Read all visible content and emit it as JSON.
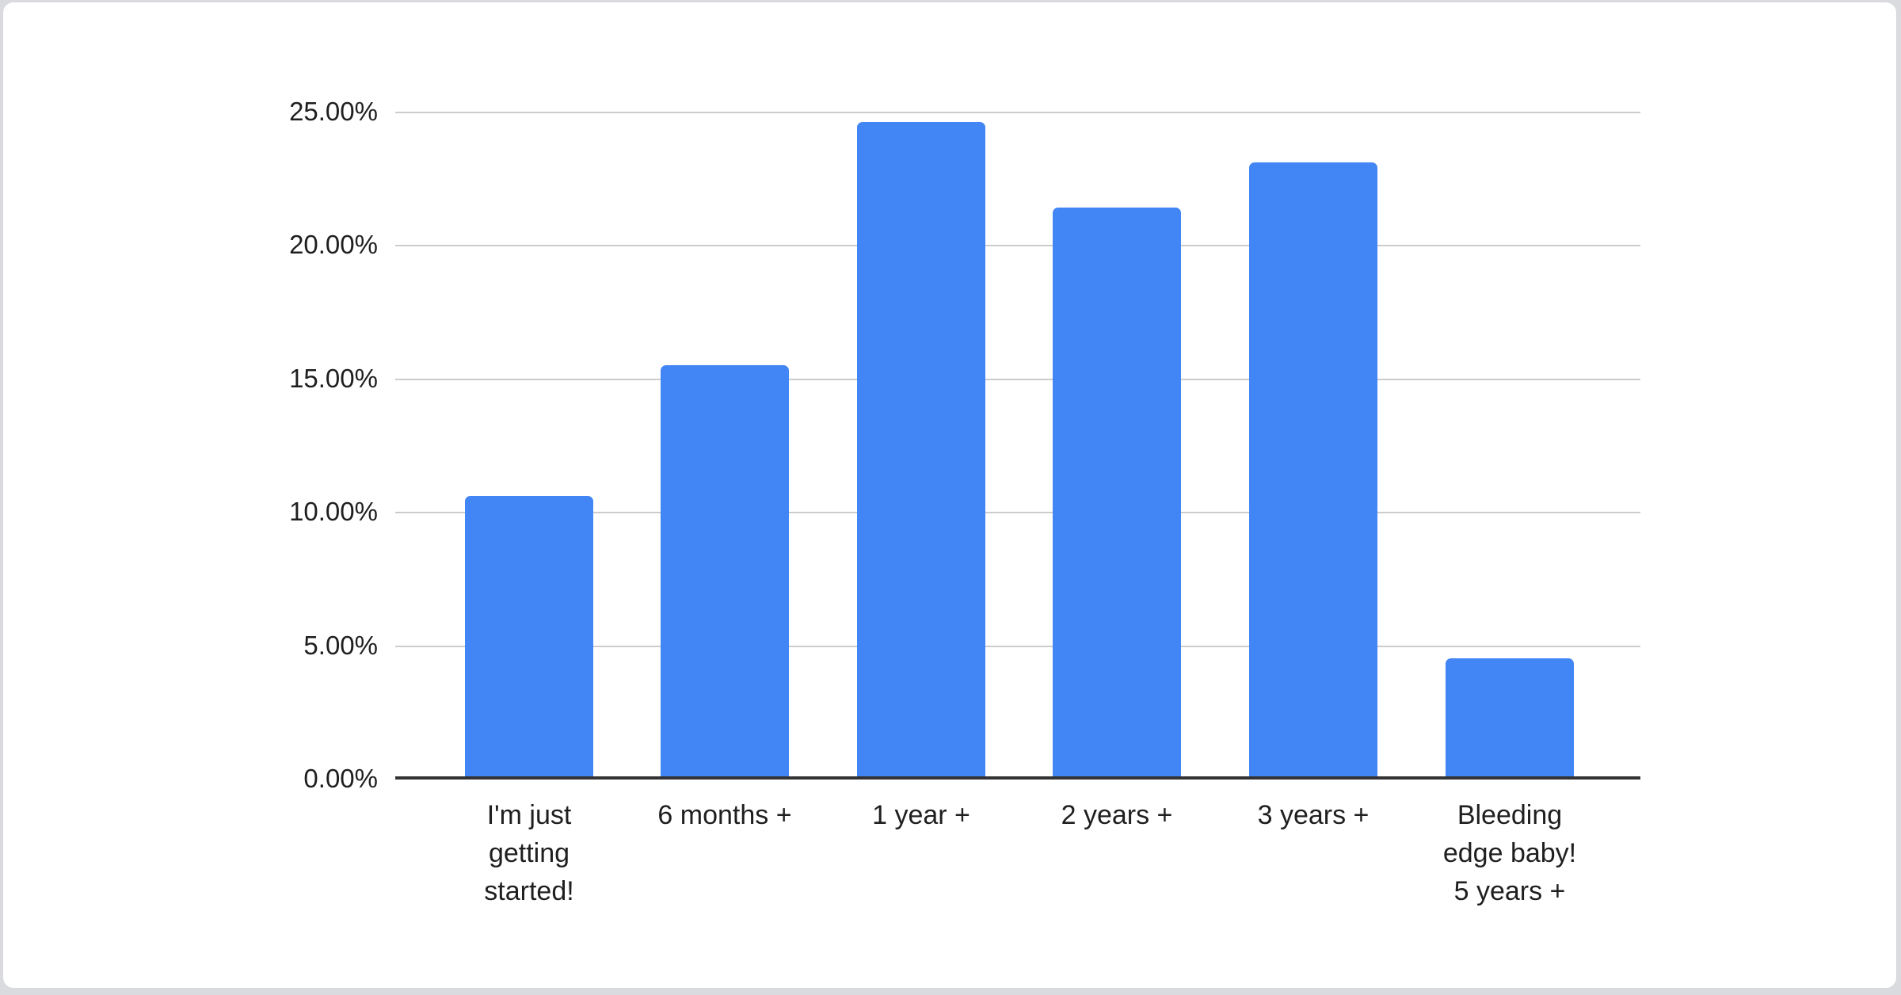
{
  "page": {
    "background_color": "#d9dbde",
    "card_background_color": "#ffffff",
    "card_border_color": "#d6d8db"
  },
  "chart_data": {
    "type": "bar",
    "title": "",
    "xlabel": "",
    "ylabel": "",
    "categories": [
      "I'm just getting started!",
      "6 months +",
      "1 year +",
      "2 years +",
      "3 years +",
      "Bleeding edge baby! 5 years +"
    ],
    "category_lines": [
      [
        "I'm just",
        "getting",
        "started!"
      ],
      [
        "6 months +"
      ],
      [
        "1 year +"
      ],
      [
        "2 years +"
      ],
      [
        "3 years +"
      ],
      [
        "Bleeding",
        "edge baby!",
        "5 years +"
      ]
    ],
    "values": [
      10.6,
      15.5,
      24.6,
      21.4,
      23.1,
      4.5
    ],
    "value_unit": "percent",
    "ylim": [
      0,
      25
    ],
    "y_ticks": [
      "25.00%",
      "20.00%",
      "15.00%",
      "10.00%",
      "5.00%",
      "0.00%"
    ],
    "y_tick_values": [
      25,
      20,
      15,
      10,
      5,
      0
    ],
    "grid": true,
    "legend_position": "none",
    "bar_color": "#4285f4",
    "gridline_color": "#cccccc",
    "axis_line_color": "#333333",
    "label_color": "#1f1f1f"
  }
}
